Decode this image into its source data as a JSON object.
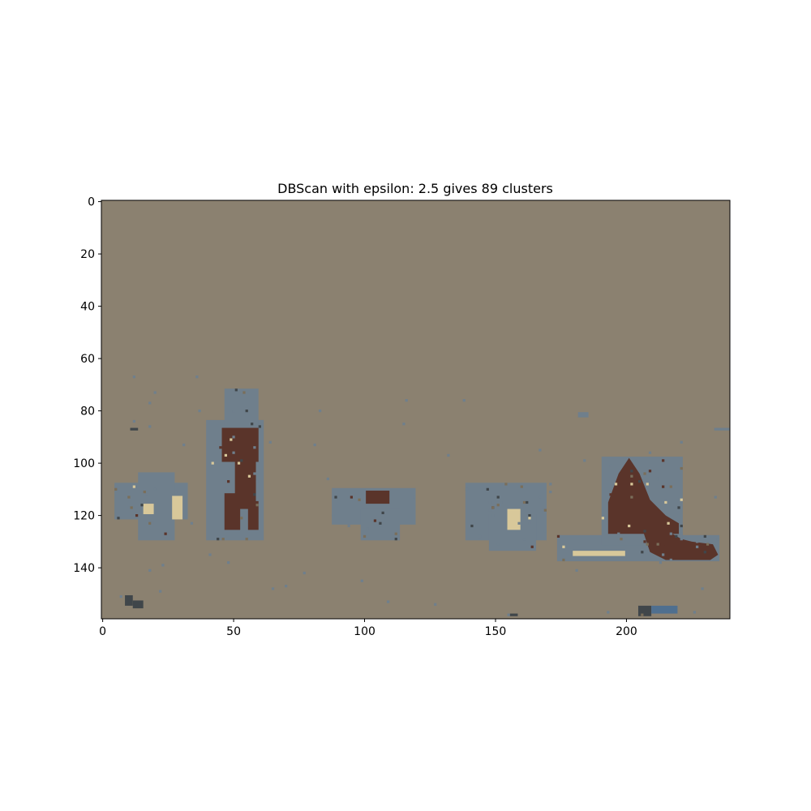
{
  "chart_data": {
    "type": "heatmap",
    "title": "DBScan with epsilon: 2.5 gives 89 clusters",
    "image_size": [
      240,
      160
    ],
    "xlim": [
      -0.5,
      239.5
    ],
    "ylim": [
      159.5,
      -0.5
    ],
    "xticks": [
      0,
      50,
      100,
      150,
      200
    ],
    "yticks": [
      0,
      20,
      40,
      60,
      80,
      100,
      120,
      140
    ],
    "background_label_color": "#8B8170",
    "colors": {
      "background": "#8B8170",
      "blue_gray": "#6F7F8C",
      "dark_brown": "#5A342A",
      "cream": "#D8C89A",
      "dark_slate": "#40464A",
      "steel_blue": "#4F6F8F",
      "olive_gray": "#7A6E5A"
    },
    "regions": [
      {
        "color": "blue_gray",
        "shape": "rect",
        "x": [
          5,
          33
        ],
        "y": [
          108,
          122
        ]
      },
      {
        "color": "blue_gray",
        "shape": "rect",
        "x": [
          14,
          28
        ],
        "y": [
          104,
          130
        ]
      },
      {
        "color": "cream",
        "shape": "rect",
        "x": [
          27,
          31
        ],
        "y": [
          113,
          122
        ]
      },
      {
        "color": "cream",
        "shape": "rect",
        "x": [
          16,
          20
        ],
        "y": [
          116,
          120
        ]
      },
      {
        "color": "blue_gray",
        "shape": "rect",
        "x": [
          40,
          62
        ],
        "y": [
          84,
          130
        ]
      },
      {
        "color": "blue_gray",
        "shape": "rect",
        "x": [
          47,
          60
        ],
        "y": [
          72,
          86
        ]
      },
      {
        "color": "dark_brown",
        "shape": "rect",
        "x": [
          46,
          60
        ],
        "y": [
          87,
          100
        ]
      },
      {
        "color": "dark_brown",
        "shape": "rect",
        "x": [
          51,
          59
        ],
        "y": [
          100,
          118
        ]
      },
      {
        "color": "dark_brown",
        "shape": "rect",
        "x": [
          47,
          53
        ],
        "y": [
          112,
          126
        ]
      },
      {
        "color": "dark_brown",
        "shape": "rect",
        "x": [
          56,
          60
        ],
        "y": [
          115,
          126
        ]
      },
      {
        "color": "blue_gray",
        "shape": "rect",
        "x": [
          88,
          120
        ],
        "y": [
          110,
          124
        ]
      },
      {
        "color": "blue_gray",
        "shape": "rect",
        "x": [
          99,
          114
        ],
        "y": [
          118,
          130
        ]
      },
      {
        "color": "dark_brown",
        "shape": "rect",
        "x": [
          101,
          110
        ],
        "y": [
          111,
          116
        ]
      },
      {
        "color": "blue_gray",
        "shape": "rect",
        "x": [
          139,
          170
        ],
        "y": [
          108,
          130
        ]
      },
      {
        "color": "blue_gray",
        "shape": "rect",
        "x": [
          148,
          166
        ],
        "y": [
          120,
          134
        ]
      },
      {
        "color": "cream",
        "shape": "rect",
        "x": [
          155,
          160
        ],
        "y": [
          118,
          126
        ]
      },
      {
        "color": "blue_gray",
        "shape": "rect",
        "x": [
          174,
          236
        ],
        "y": [
          128,
          138
        ]
      },
      {
        "color": "blue_gray",
        "shape": "rect",
        "x": [
          191,
          222
        ],
        "y": [
          98,
          132
        ]
      },
      {
        "color": "dark_brown",
        "shape": "poly",
        "points": [
          [
            193,
            127
          ],
          [
            193,
            115
          ],
          [
            197,
            104
          ],
          [
            201,
            98
          ],
          [
            205,
            104
          ],
          [
            209,
            114
          ],
          [
            215,
            120
          ],
          [
            220,
            123
          ],
          [
            220,
            127
          ]
        ]
      },
      {
        "color": "dark_brown",
        "shape": "poly",
        "points": [
          [
            206,
            125
          ],
          [
            214,
            125
          ],
          [
            221,
            129
          ],
          [
            225,
            130
          ],
          [
            233,
            131
          ],
          [
            235,
            135
          ],
          [
            232,
            137
          ],
          [
            215,
            137
          ],
          [
            209,
            134
          ]
        ]
      },
      {
        "color": "cream",
        "shape": "rect",
        "x": [
          180,
          200
        ],
        "y": [
          134,
          136
        ]
      },
      {
        "color": "dark_slate",
        "shape": "rect",
        "x": [
          9,
          12
        ],
        "y": [
          151,
          155
        ]
      },
      {
        "color": "dark_slate",
        "shape": "rect",
        "x": [
          12,
          16
        ],
        "y": [
          153,
          156
        ]
      },
      {
        "color": "dark_slate",
        "shape": "rect",
        "x": [
          205,
          210
        ],
        "y": [
          155,
          159
        ]
      },
      {
        "color": "steel_blue",
        "shape": "rect",
        "x": [
          210,
          220
        ],
        "y": [
          155,
          158
        ]
      },
      {
        "color": "dark_slate",
        "shape": "rect",
        "x": [
          156,
          159
        ],
        "y": [
          158,
          159
        ]
      },
      {
        "color": "blue_gray",
        "shape": "rect",
        "x": [
          182,
          186
        ],
        "y": [
          81,
          83
        ]
      },
      {
        "color": "blue_gray",
        "shape": "rect",
        "x": [
          234,
          240
        ],
        "y": [
          87,
          88
        ]
      },
      {
        "color": "dark_slate",
        "shape": "rect",
        "x": [
          11,
          14
        ],
        "y": [
          87,
          88
        ]
      }
    ],
    "speckle": {
      "seed": 7,
      "colors": [
        "blue_gray",
        "dark_brown",
        "cream",
        "dark_slate",
        "olive_gray"
      ]
    }
  }
}
